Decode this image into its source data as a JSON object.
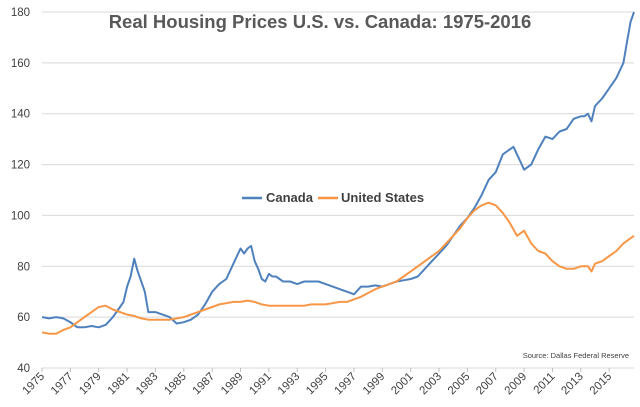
{
  "chart_data": {
    "type": "line",
    "title": "Real Housing Prices U.S. vs. Canada: 1975-2016",
    "source": "Source: Dallas Federal Reserve",
    "xlabel": "",
    "ylabel": "",
    "xlim": [
      1975,
      2016.75
    ],
    "ylim": [
      40,
      180
    ],
    "y_ticks": [
      40,
      60,
      80,
      100,
      120,
      140,
      160,
      180
    ],
    "x_ticks": [
      "1975",
      "1977",
      "1979",
      "1981",
      "1983",
      "1985",
      "1987",
      "1989",
      "1991",
      "1993",
      "1995",
      "1997",
      "1999",
      "2001",
      "2003",
      "2005",
      "2007",
      "2009",
      "2011",
      "2013",
      "2015"
    ],
    "grid": "horizontal",
    "legend_position": "center",
    "series": [
      {
        "name": "Canada",
        "color": "#4f81bd",
        "points": [
          [
            1975.0,
            60
          ],
          [
            1975.5,
            59.5
          ],
          [
            1976.0,
            60
          ],
          [
            1976.5,
            59.5
          ],
          [
            1977.0,
            58
          ],
          [
            1977.5,
            56
          ],
          [
            1978.0,
            56
          ],
          [
            1978.5,
            56.5
          ],
          [
            1979.0,
            56
          ],
          [
            1979.5,
            57
          ],
          [
            1980.0,
            60
          ],
          [
            1980.5,
            64
          ],
          [
            1980.75,
            66
          ],
          [
            1981.0,
            72
          ],
          [
            1981.25,
            76
          ],
          [
            1981.5,
            83
          ],
          [
            1981.75,
            78
          ],
          [
            1982.0,
            74
          ],
          [
            1982.25,
            70
          ],
          [
            1982.5,
            62
          ],
          [
            1983.0,
            62
          ],
          [
            1983.5,
            61
          ],
          [
            1984.0,
            60
          ],
          [
            1984.5,
            57.5
          ],
          [
            1985.0,
            58
          ],
          [
            1985.5,
            59
          ],
          [
            1986.0,
            61
          ],
          [
            1986.5,
            65
          ],
          [
            1987.0,
            70
          ],
          [
            1987.5,
            73
          ],
          [
            1988.0,
            75
          ],
          [
            1988.5,
            81
          ],
          [
            1989.0,
            87
          ],
          [
            1989.25,
            85
          ],
          [
            1989.5,
            87
          ],
          [
            1989.75,
            88
          ],
          [
            1990.0,
            82
          ],
          [
            1990.25,
            79
          ],
          [
            1990.5,
            75
          ],
          [
            1990.75,
            74
          ],
          [
            1991.0,
            77
          ],
          [
            1991.25,
            76
          ],
          [
            1991.5,
            76
          ],
          [
            1992.0,
            74
          ],
          [
            1992.5,
            74
          ],
          [
            1993.0,
            73
          ],
          [
            1993.5,
            74
          ],
          [
            1994.0,
            74
          ],
          [
            1994.5,
            74
          ],
          [
            1995.0,
            73
          ],
          [
            1995.5,
            72
          ],
          [
            1996.0,
            71
          ],
          [
            1996.5,
            70
          ],
          [
            1997.0,
            69
          ],
          [
            1997.5,
            72
          ],
          [
            1998.0,
            72
          ],
          [
            1998.5,
            72.5
          ],
          [
            1999.0,
            72
          ],
          [
            1999.5,
            73
          ],
          [
            2000.0,
            74
          ],
          [
            2000.5,
            74.5
          ],
          [
            2001.0,
            75
          ],
          [
            2001.5,
            76
          ],
          [
            2002.0,
            79
          ],
          [
            2002.5,
            82
          ],
          [
            2003.0,
            85
          ],
          [
            2003.5,
            88
          ],
          [
            2004.0,
            92
          ],
          [
            2004.5,
            96
          ],
          [
            2005.0,
            99
          ],
          [
            2005.5,
            103
          ],
          [
            2006.0,
            108
          ],
          [
            2006.5,
            114
          ],
          [
            2007.0,
            117
          ],
          [
            2007.5,
            124
          ],
          [
            2008.0,
            126
          ],
          [
            2008.25,
            127
          ],
          [
            2008.5,
            124
          ],
          [
            2008.75,
            121
          ],
          [
            2009.0,
            118
          ],
          [
            2009.5,
            120
          ],
          [
            2010.0,
            126
          ],
          [
            2010.5,
            131
          ],
          [
            2011.0,
            130
          ],
          [
            2011.5,
            133
          ],
          [
            2012.0,
            134
          ],
          [
            2012.5,
            138
          ],
          [
            2013.0,
            139
          ],
          [
            2013.25,
            139
          ],
          [
            2013.5,
            140
          ],
          [
            2013.75,
            137
          ],
          [
            2014.0,
            143
          ],
          [
            2014.5,
            146
          ],
          [
            2015.0,
            150
          ],
          [
            2015.5,
            154
          ],
          [
            2016.0,
            160
          ],
          [
            2016.25,
            168
          ],
          [
            2016.5,
            176
          ],
          [
            2016.75,
            180
          ]
        ]
      },
      {
        "name": "United States",
        "color": "#f79646",
        "points": [
          [
            1975.0,
            54
          ],
          [
            1975.5,
            53.5
          ],
          [
            1976.0,
            53.5
          ],
          [
            1976.5,
            55
          ],
          [
            1977.0,
            56
          ],
          [
            1977.5,
            58
          ],
          [
            1978.0,
            60
          ],
          [
            1978.5,
            62
          ],
          [
            1979.0,
            64
          ],
          [
            1979.5,
            64.5
          ],
          [
            1980.0,
            63
          ],
          [
            1980.5,
            62
          ],
          [
            1981.0,
            61
          ],
          [
            1981.5,
            60.5
          ],
          [
            1982.0,
            59.5
          ],
          [
            1982.5,
            59
          ],
          [
            1983.0,
            59
          ],
          [
            1983.5,
            59
          ],
          [
            1984.0,
            59
          ],
          [
            1984.5,
            59.5
          ],
          [
            1985.0,
            60
          ],
          [
            1985.5,
            61
          ],
          [
            1986.0,
            62
          ],
          [
            1986.5,
            63
          ],
          [
            1987.0,
            64
          ],
          [
            1987.5,
            65
          ],
          [
            1988.0,
            65.5
          ],
          [
            1988.5,
            66
          ],
          [
            1989.0,
            66
          ],
          [
            1989.5,
            66.5
          ],
          [
            1990.0,
            66
          ],
          [
            1990.5,
            65
          ],
          [
            1991.0,
            64.5
          ],
          [
            1991.5,
            64.5
          ],
          [
            1992.0,
            64.5
          ],
          [
            1992.5,
            64.5
          ],
          [
            1993.0,
            64.5
          ],
          [
            1993.5,
            64.5
          ],
          [
            1994.0,
            65
          ],
          [
            1994.5,
            65
          ],
          [
            1995.0,
            65
          ],
          [
            1995.5,
            65.5
          ],
          [
            1996.0,
            66
          ],
          [
            1996.5,
            66
          ],
          [
            1997.0,
            67
          ],
          [
            1997.5,
            68
          ],
          [
            1998.0,
            69.5
          ],
          [
            1998.5,
            71
          ],
          [
            1999.0,
            72
          ],
          [
            1999.5,
            73
          ],
          [
            2000.0,
            74
          ],
          [
            2000.5,
            76
          ],
          [
            2001.0,
            78
          ],
          [
            2001.5,
            80
          ],
          [
            2002.0,
            82
          ],
          [
            2002.5,
            84
          ],
          [
            2003.0,
            86
          ],
          [
            2003.5,
            89
          ],
          [
            2004.0,
            92
          ],
          [
            2004.5,
            95
          ],
          [
            2005.0,
            99
          ],
          [
            2005.5,
            102
          ],
          [
            2006.0,
            104
          ],
          [
            2006.5,
            105
          ],
          [
            2007.0,
            104
          ],
          [
            2007.5,
            101
          ],
          [
            2008.0,
            97
          ],
          [
            2008.5,
            92
          ],
          [
            2009.0,
            94
          ],
          [
            2009.5,
            89
          ],
          [
            2010.0,
            86
          ],
          [
            2010.5,
            85
          ],
          [
            2011.0,
            82
          ],
          [
            2011.5,
            80
          ],
          [
            2012.0,
            79
          ],
          [
            2012.5,
            79
          ],
          [
            2013.0,
            80
          ],
          [
            2013.5,
            80
          ],
          [
            2013.75,
            78
          ],
          [
            2014.0,
            81
          ],
          [
            2014.5,
            82
          ],
          [
            2015.0,
            84
          ],
          [
            2015.5,
            86
          ],
          [
            2016.0,
            89
          ],
          [
            2016.5,
            91
          ],
          [
            2016.75,
            92
          ]
        ]
      }
    ]
  }
}
